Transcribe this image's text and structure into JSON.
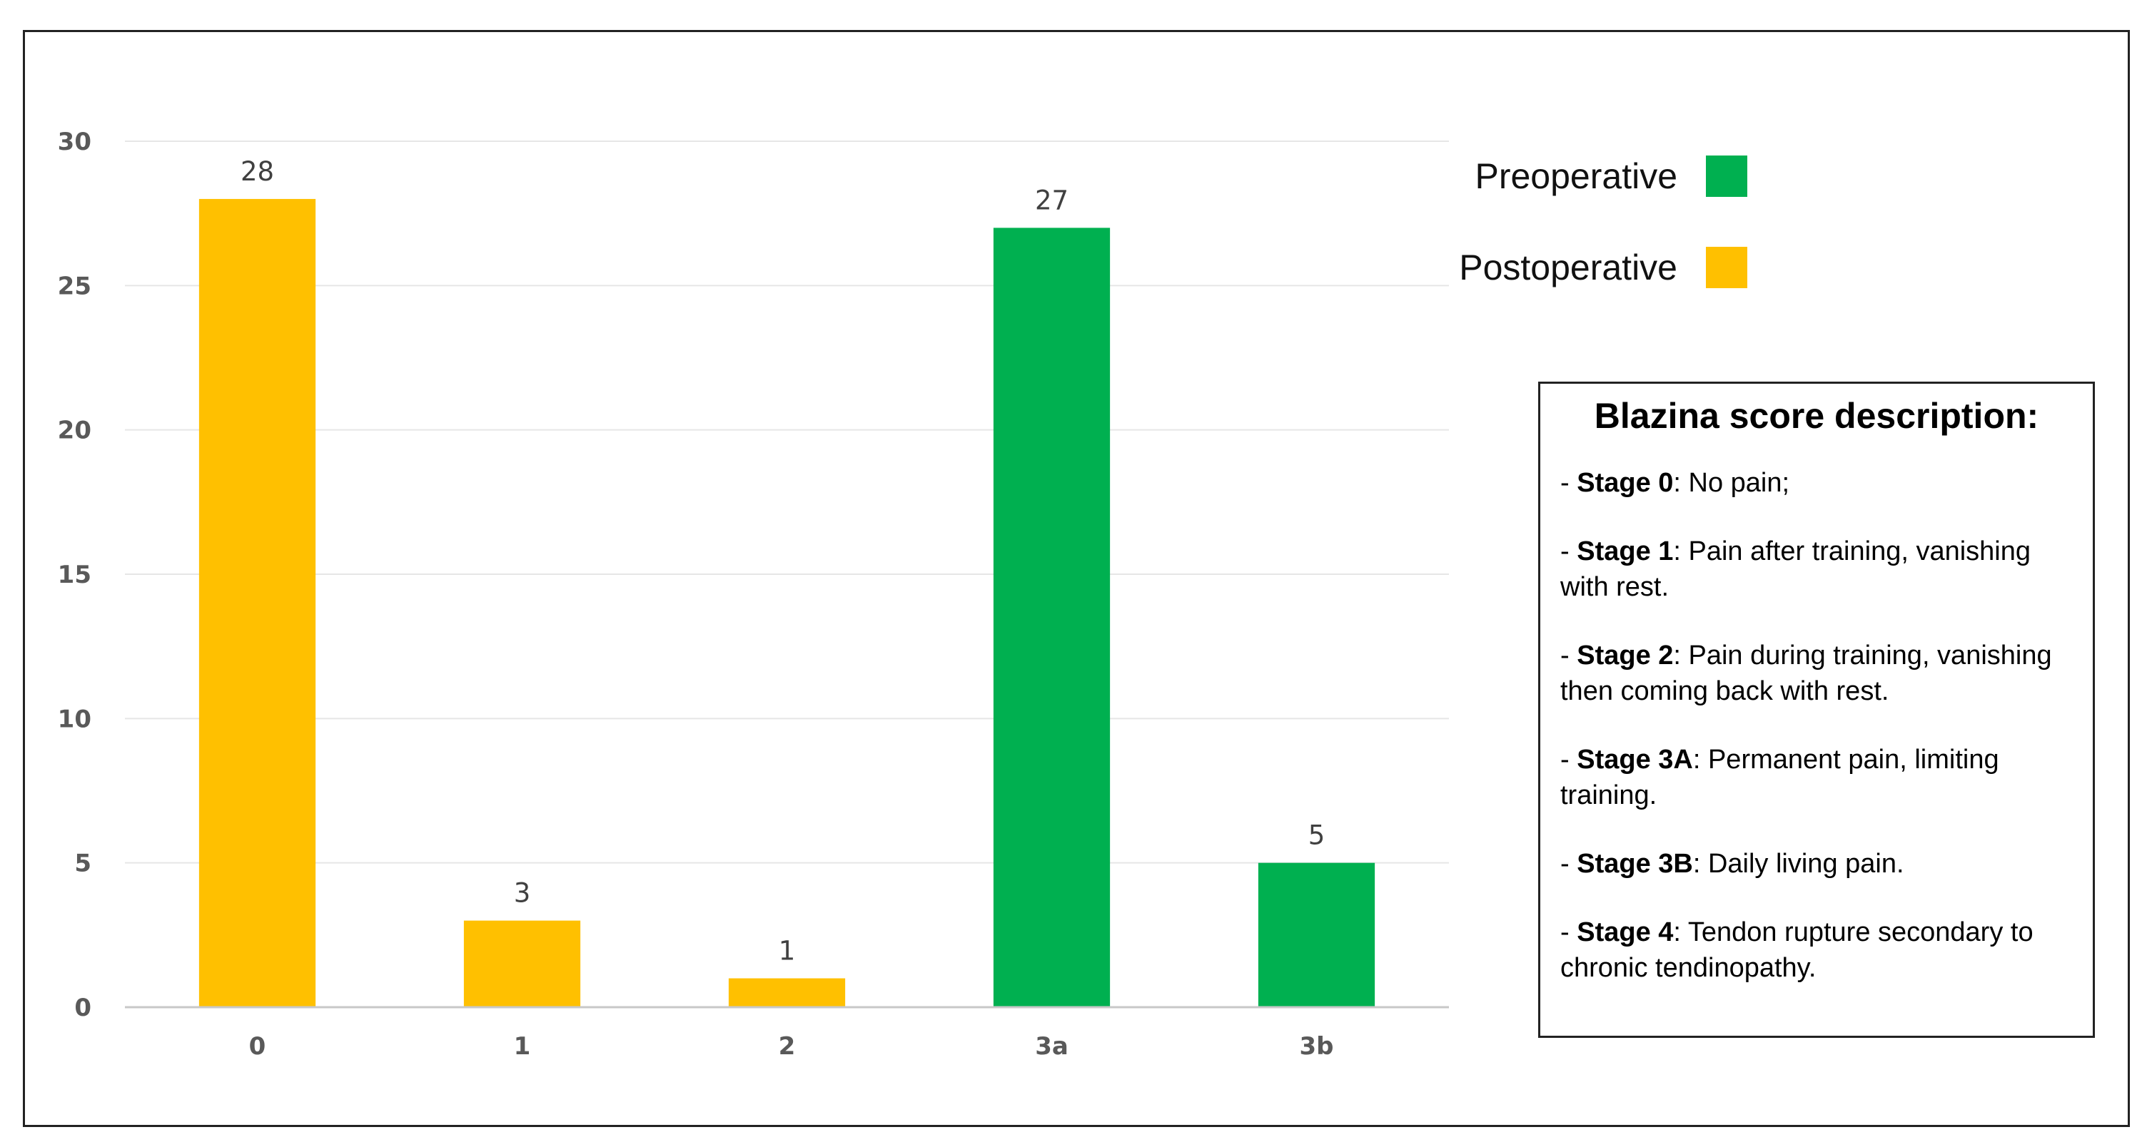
{
  "chart_data": {
    "type": "bar",
    "categories": [
      "0",
      "1",
      "2",
      "3a",
      "3b"
    ],
    "values": [
      28,
      3,
      1,
      27,
      5
    ],
    "bar_series": [
      "Postoperative",
      "Postoperative",
      "Postoperative",
      "Preoperative",
      "Preoperative"
    ],
    "ylim": [
      0,
      30
    ],
    "yticks": [
      "0",
      "5",
      "10",
      "15",
      "20",
      "25",
      "30"
    ],
    "grid": true,
    "legend_placement": "top-right",
    "series": [
      {
        "name": "Preoperative",
        "color": "#00B050"
      },
      {
        "name": "Postoperative",
        "color": "#FFC000"
      }
    ]
  },
  "legend": {
    "preoperative": "Preoperative",
    "postoperative": "Postoperative"
  },
  "description": {
    "title": "Blazina score description:",
    "items": [
      {
        "prefix": "- ",
        "stage": "Stage 0",
        "text": ": No pain;"
      },
      {
        "prefix": "- ",
        "stage": "Stage 1",
        "text": ": Pain after training, vanishing with rest."
      },
      {
        "prefix": "- ",
        "stage": "Stage 2",
        "text": ": Pain during training, vanishing then coming back with rest."
      },
      {
        "prefix": "- ",
        "stage": "Stage 3A",
        "text": ": Permanent pain, limiting training."
      },
      {
        "prefix": "- ",
        "stage": "Stage 3B",
        "text": ": Daily living pain."
      },
      {
        "prefix": "- ",
        "stage": "Stage 4",
        "text": ": Tendon rupture secondary to chronic tendinopathy."
      }
    ]
  }
}
